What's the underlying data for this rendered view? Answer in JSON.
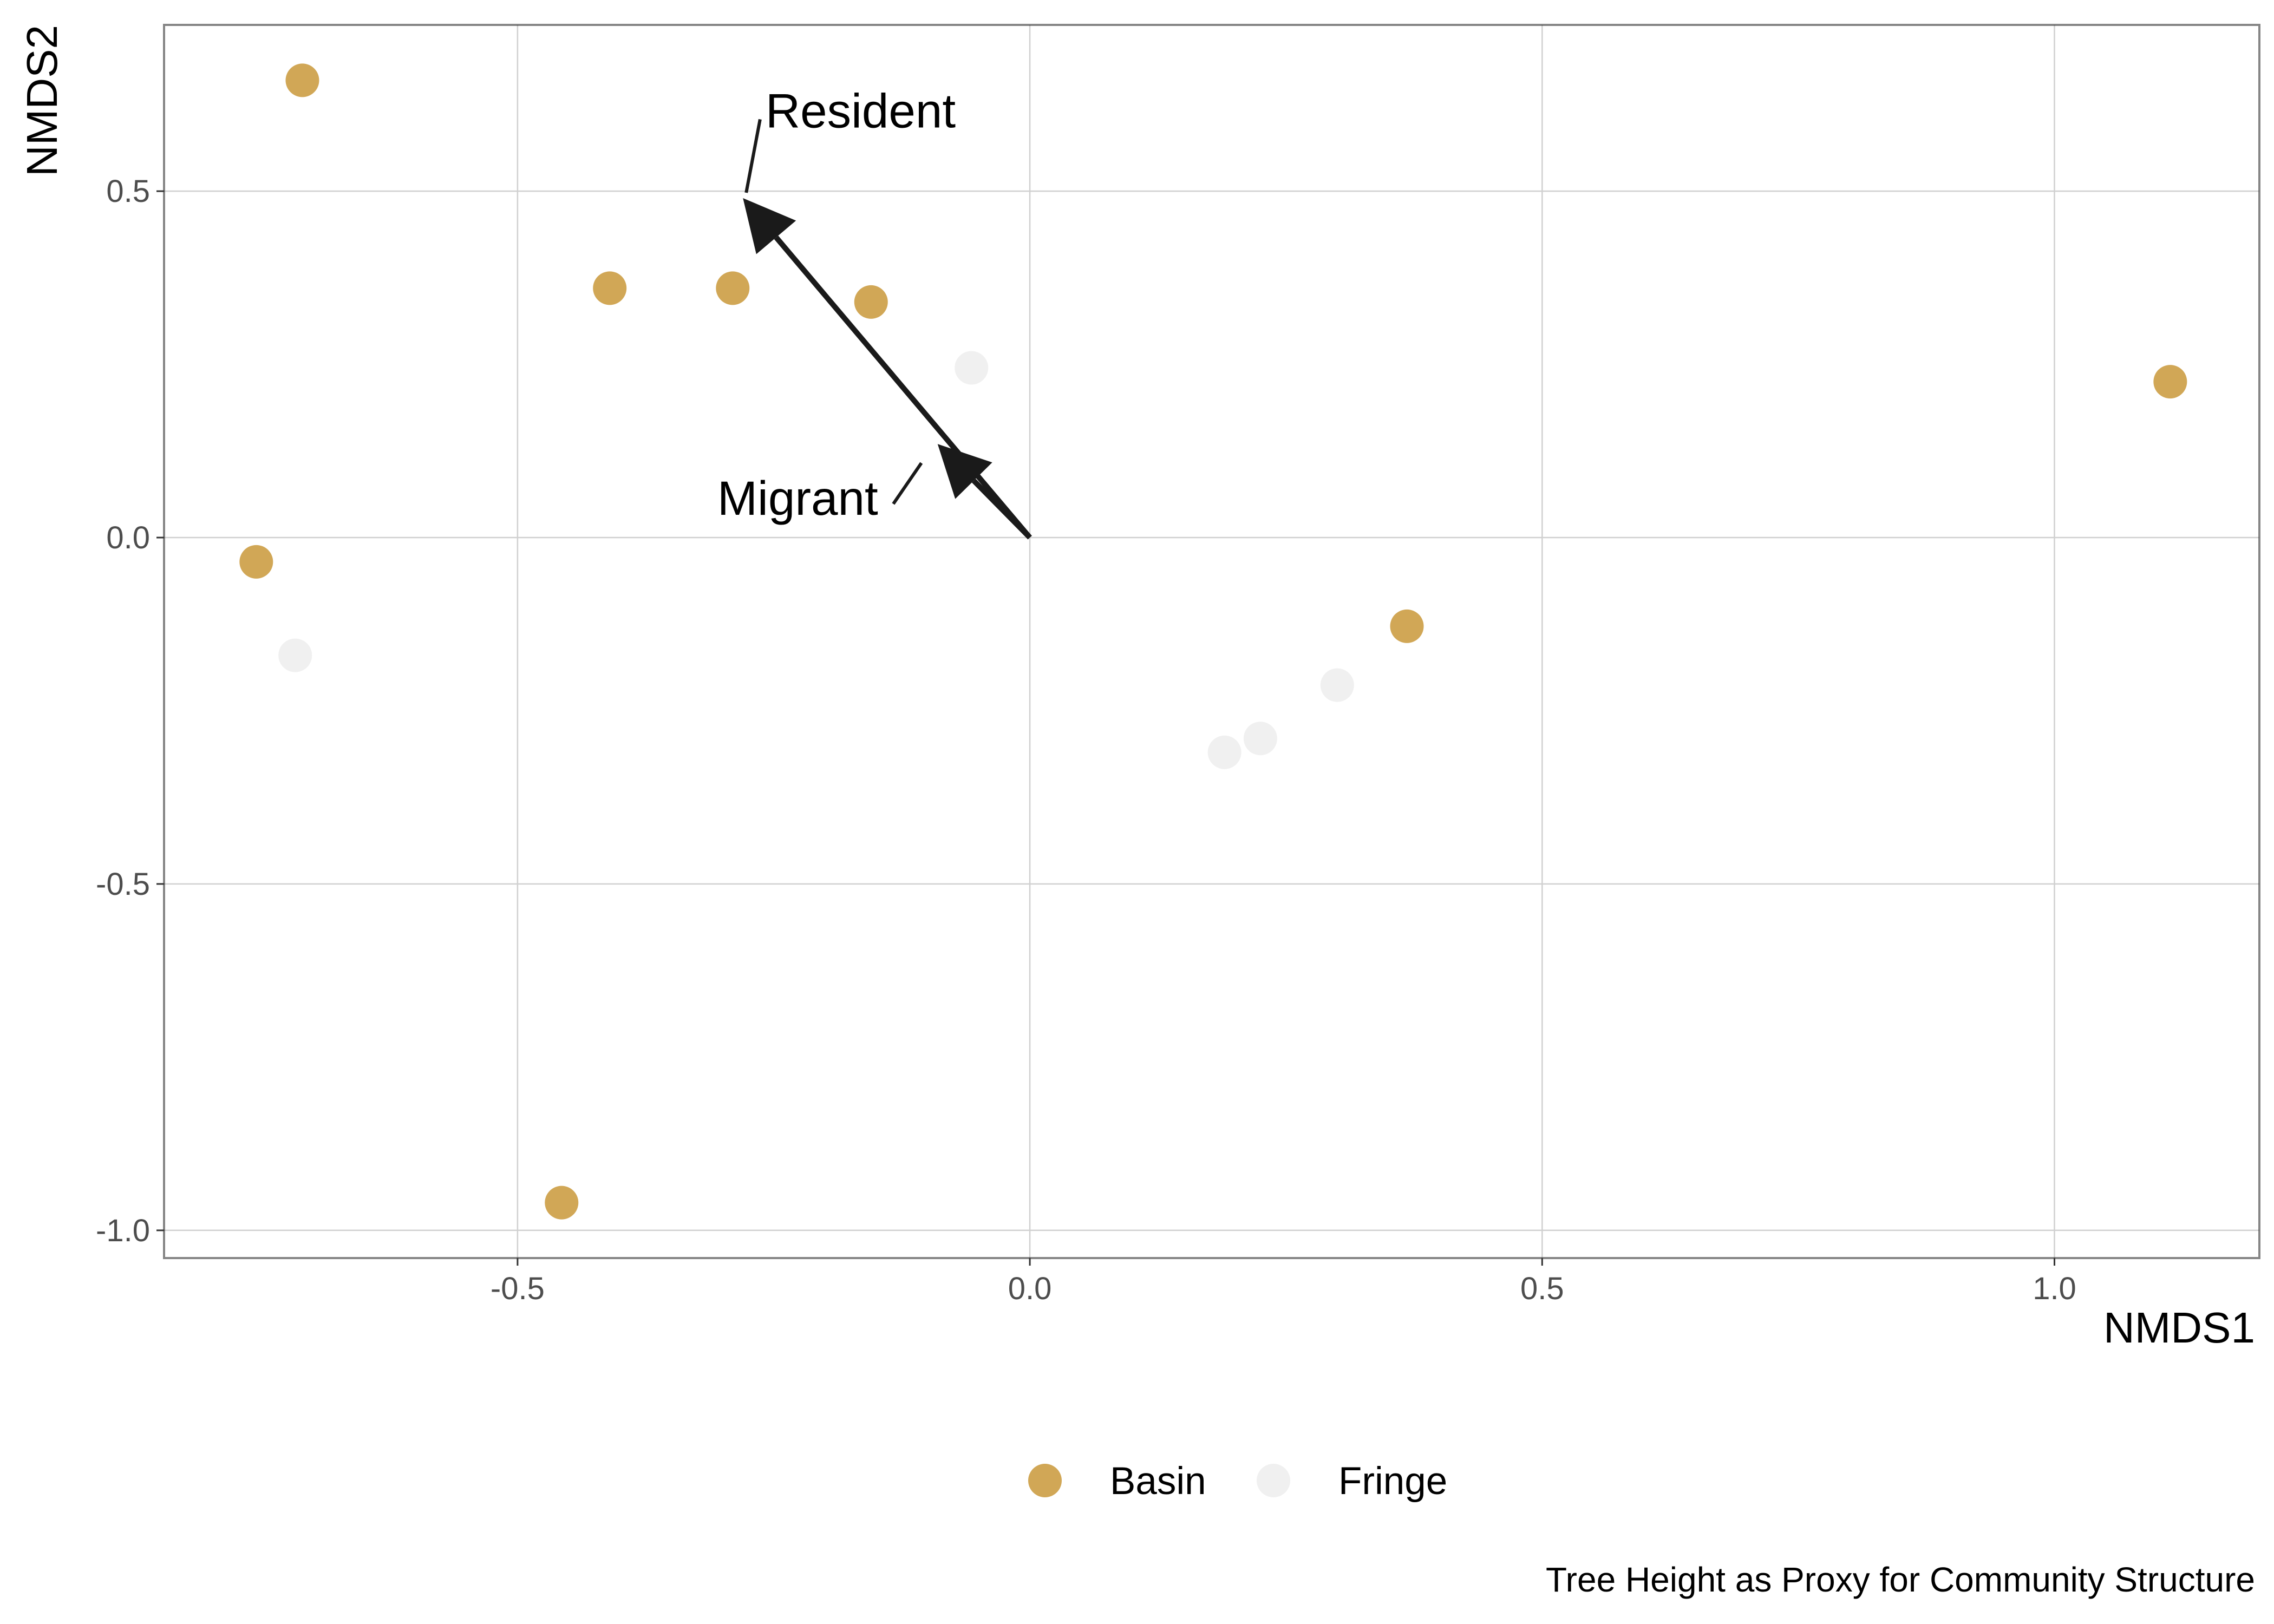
{
  "chart_data": {
    "type": "scatter",
    "xlabel": "NMDS1",
    "ylabel": "NMDS2",
    "caption": "Tree Height as Proxy for Community Structure",
    "xlim": [
      -0.845,
      1.2
    ],
    "ylim": [
      -1.04,
      0.74
    ],
    "x_ticks": [
      -0.5,
      0.0,
      0.5,
      1.0
    ],
    "x_tick_labels": [
      "-0.5",
      "0.0",
      "0.5",
      "1.0"
    ],
    "y_ticks": [
      -1.0,
      -0.5,
      0.0,
      0.5
    ],
    "y_tick_labels": [
      "-1.0",
      "-0.5",
      "0.0",
      "0.5"
    ],
    "grid": true,
    "legend_position": "bottom",
    "series": [
      {
        "name": "Basin",
        "color": "#d1a756",
        "points": [
          {
            "x": -0.71,
            "y": 0.66
          },
          {
            "x": -0.41,
            "y": 0.36
          },
          {
            "x": -0.29,
            "y": 0.36
          },
          {
            "x": -0.155,
            "y": 0.34
          },
          {
            "x": -0.755,
            "y": -0.035
          },
          {
            "x": -0.457,
            "y": -0.96
          },
          {
            "x": 0.368,
            "y": -0.128
          },
          {
            "x": 1.113,
            "y": 0.225
          }
        ]
      },
      {
        "name": "Fringe",
        "color": "#f0f0f0",
        "points": [
          {
            "x": -0.057,
            "y": 0.245
          },
          {
            "x": -0.717,
            "y": -0.17
          },
          {
            "x": 0.3,
            "y": -0.213
          },
          {
            "x": 0.225,
            "y": -0.29
          },
          {
            "x": 0.19,
            "y": -0.31
          }
        ]
      }
    ],
    "vectors": [
      {
        "label": "Resident",
        "x": -0.28,
        "y": 0.49,
        "label_x": -0.258,
        "label_y": 0.592
      },
      {
        "label": "Migrant",
        "x": -0.09,
        "y": 0.135,
        "label_x": -0.305,
        "label_y": 0.033
      }
    ]
  }
}
